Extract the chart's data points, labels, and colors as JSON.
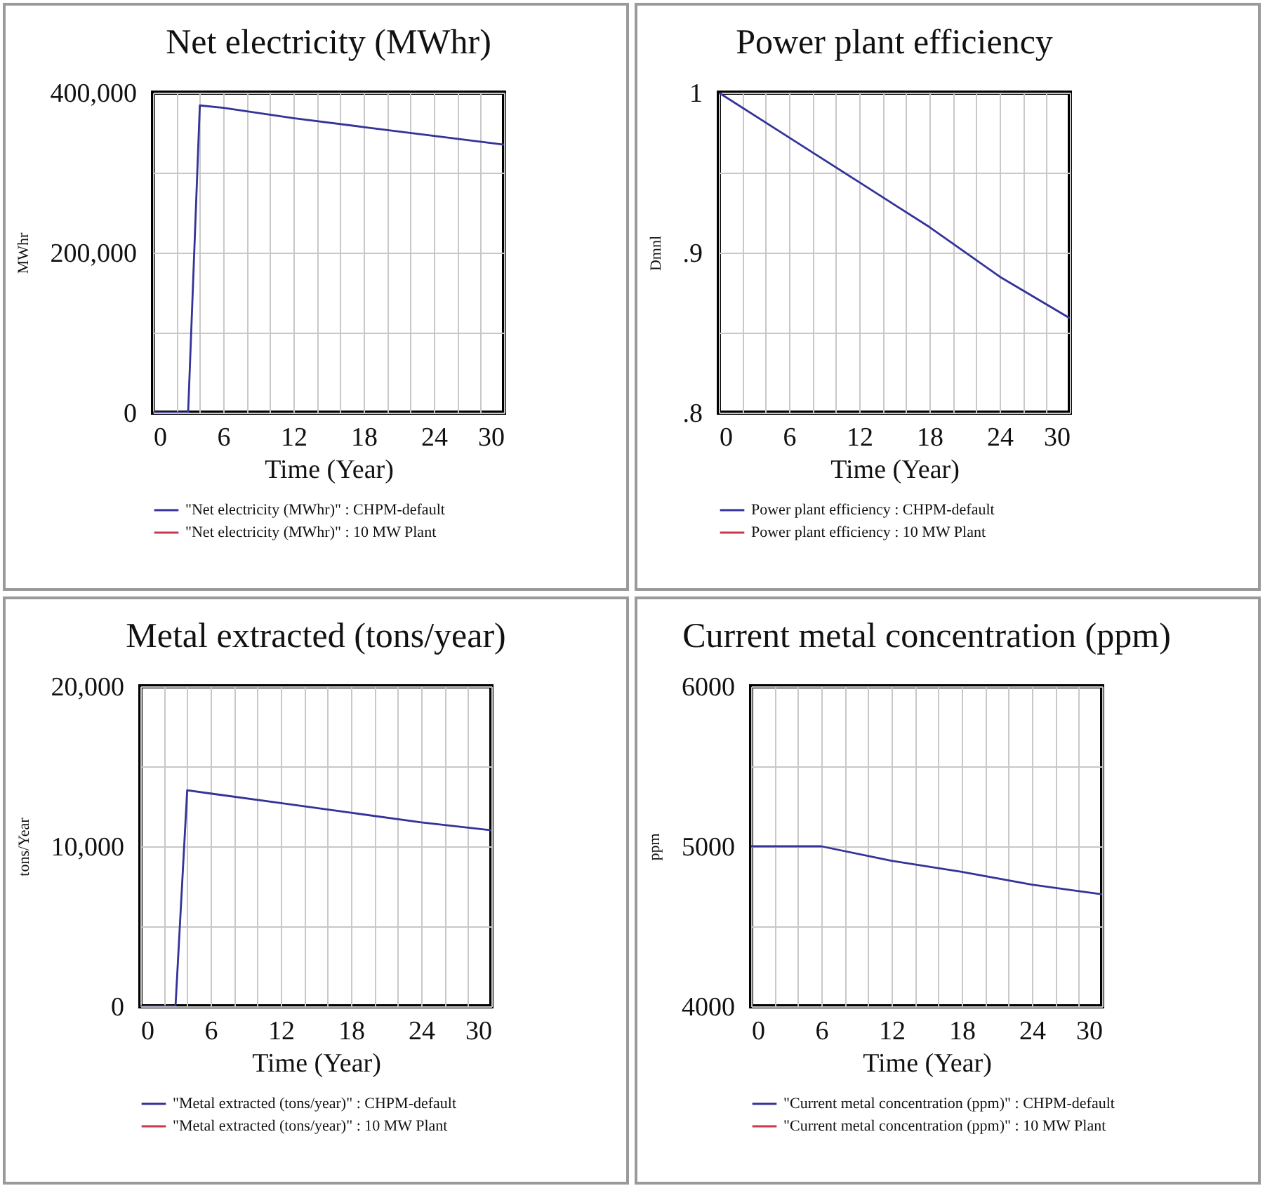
{
  "chart_data": [
    {
      "type": "line",
      "title": "Net electricity (MWhr)",
      "xlabel": "Time (Year)",
      "ylabel": "MWhr",
      "xlim": [
        0,
        30
      ],
      "ylim": [
        0,
        400000
      ],
      "xticks": [
        0,
        {
          "value": 2,
          "label": null
        },
        {
          "value": 4,
          "label": null
        },
        6,
        {
          "value": 8,
          "label": null
        },
        {
          "value": 10,
          "label": null
        },
        12,
        {
          "value": 14,
          "label": null
        },
        {
          "value": 16,
          "label": null
        },
        18,
        {
          "value": 20,
          "label": null
        },
        {
          "value": 22,
          "label": null
        },
        24,
        {
          "value": 26,
          "label": null
        },
        {
          "value": 28,
          "label": null
        },
        30
      ],
      "yticks": [
        0,
        {
          "value": 100000,
          "label": null
        },
        {
          "value": 200000,
          "label": "200,000"
        },
        {
          "value": 300000,
          "label": null
        },
        {
          "value": 400000,
          "label": "400,000"
        }
      ],
      "grid": true,
      "legend": "bottom",
      "series": [
        {
          "name": "\"Net electricity (MWhr)\" : CHPM-default",
          "color": "#33339a",
          "x": [
            0,
            3,
            4,
            6,
            12,
            18,
            24,
            30
          ],
          "values": [
            0,
            0,
            384000,
            381000,
            368000,
            357000,
            346000,
            335000
          ]
        },
        {
          "name": "\"Net electricity (MWhr)\" : 10 MW Plant",
          "color": "#c8384c"
        }
      ]
    },
    {
      "type": "line",
      "title": "Power plant efficiency",
      "xlabel": "Time (Year)",
      "ylabel": "Dmnl",
      "xlim": [
        0,
        30
      ],
      "ylim": [
        0.8,
        1
      ],
      "xticks": [
        0,
        {
          "value": 2,
          "label": null
        },
        {
          "value": 4,
          "label": null
        },
        6,
        {
          "value": 8,
          "label": null
        },
        {
          "value": 10,
          "label": null
        },
        12,
        {
          "value": 14,
          "label": null
        },
        {
          "value": 16,
          "label": null
        },
        18,
        {
          "value": 20,
          "label": null
        },
        {
          "value": 22,
          "label": null
        },
        24,
        {
          "value": 26,
          "label": null
        },
        {
          "value": 28,
          "label": null
        },
        30
      ],
      "yticks": [
        {
          "value": 0.8,
          "label": ".8"
        },
        {
          "value": 0.85,
          "label": null
        },
        {
          "value": 0.9,
          "label": ".9"
        },
        {
          "value": 0.95,
          "label": null
        },
        1
      ],
      "grid": true,
      "legend": "bottom",
      "series": [
        {
          "name": "Power plant efficiency : CHPM-default",
          "color": "#33339a",
          "x": [
            0,
            6,
            12,
            18,
            24,
            30
          ],
          "values": [
            1.0,
            0.972,
            0.944,
            0.916,
            0.885,
            0.859
          ]
        },
        {
          "name": "Power plant efficiency : 10 MW Plant",
          "color": "#c8384c"
        }
      ]
    },
    {
      "type": "line",
      "title": "Metal extracted (tons/year)",
      "xlabel": "Time (Year)",
      "ylabel": "tons/Year",
      "xlim": [
        0,
        30
      ],
      "ylim": [
        0,
        20000
      ],
      "xticks": [
        0,
        {
          "value": 2,
          "label": null
        },
        {
          "value": 4,
          "label": null
        },
        6,
        {
          "value": 8,
          "label": null
        },
        {
          "value": 10,
          "label": null
        },
        12,
        {
          "value": 14,
          "label": null
        },
        {
          "value": 16,
          "label": null
        },
        18,
        {
          "value": 20,
          "label": null
        },
        {
          "value": 22,
          "label": null
        },
        24,
        {
          "value": 26,
          "label": null
        },
        {
          "value": 28,
          "label": null
        },
        30
      ],
      "yticks": [
        0,
        {
          "value": 5000,
          "label": null
        },
        {
          "value": 10000,
          "label": "10,000"
        },
        {
          "value": 15000,
          "label": null
        },
        {
          "value": 20000,
          "label": "20,000"
        }
      ],
      "grid": true,
      "legend": "bottom",
      "series": [
        {
          "name": "\"Metal extracted (tons/year)\" : CHPM-default",
          "color": "#33339a",
          "x": [
            0,
            3,
            4,
            6,
            12,
            18,
            24,
            30
          ],
          "values": [
            0,
            0,
            13500,
            13300,
            12700,
            12100,
            11500,
            11000
          ]
        },
        {
          "name": "\"Metal extracted (tons/year)\" : 10 MW Plant",
          "color": "#c8384c"
        }
      ]
    },
    {
      "type": "line",
      "title": "Current metal concentration (ppm)",
      "xlabel": "Time (Year)",
      "ylabel": "ppm",
      "xlim": [
        0,
        30
      ],
      "ylim": [
        4000,
        6000
      ],
      "xticks": [
        0,
        {
          "value": 2,
          "label": null
        },
        {
          "value": 4,
          "label": null
        },
        6,
        {
          "value": 8,
          "label": null
        },
        {
          "value": 10,
          "label": null
        },
        12,
        {
          "value": 14,
          "label": null
        },
        {
          "value": 16,
          "label": null
        },
        18,
        {
          "value": 20,
          "label": null
        },
        {
          "value": 22,
          "label": null
        },
        24,
        {
          "value": 26,
          "label": null
        },
        {
          "value": 28,
          "label": null
        },
        30
      ],
      "yticks": [
        4000,
        {
          "value": 4500,
          "label": null
        },
        5000,
        {
          "value": 5500,
          "label": null
        },
        6000
      ],
      "grid": true,
      "legend": "bottom",
      "series": [
        {
          "name": "\"Current metal concentration (ppm)\" : CHPM-default",
          "color": "#33339a",
          "x": [
            0,
            6,
            12,
            18,
            24,
            30
          ],
          "values": [
            5000,
            5000,
            4910,
            4840,
            4760,
            4700
          ]
        },
        {
          "name": "\"Current metal concentration (ppm)\" : 10 MW Plant",
          "color": "#c8384c"
        }
      ]
    }
  ]
}
